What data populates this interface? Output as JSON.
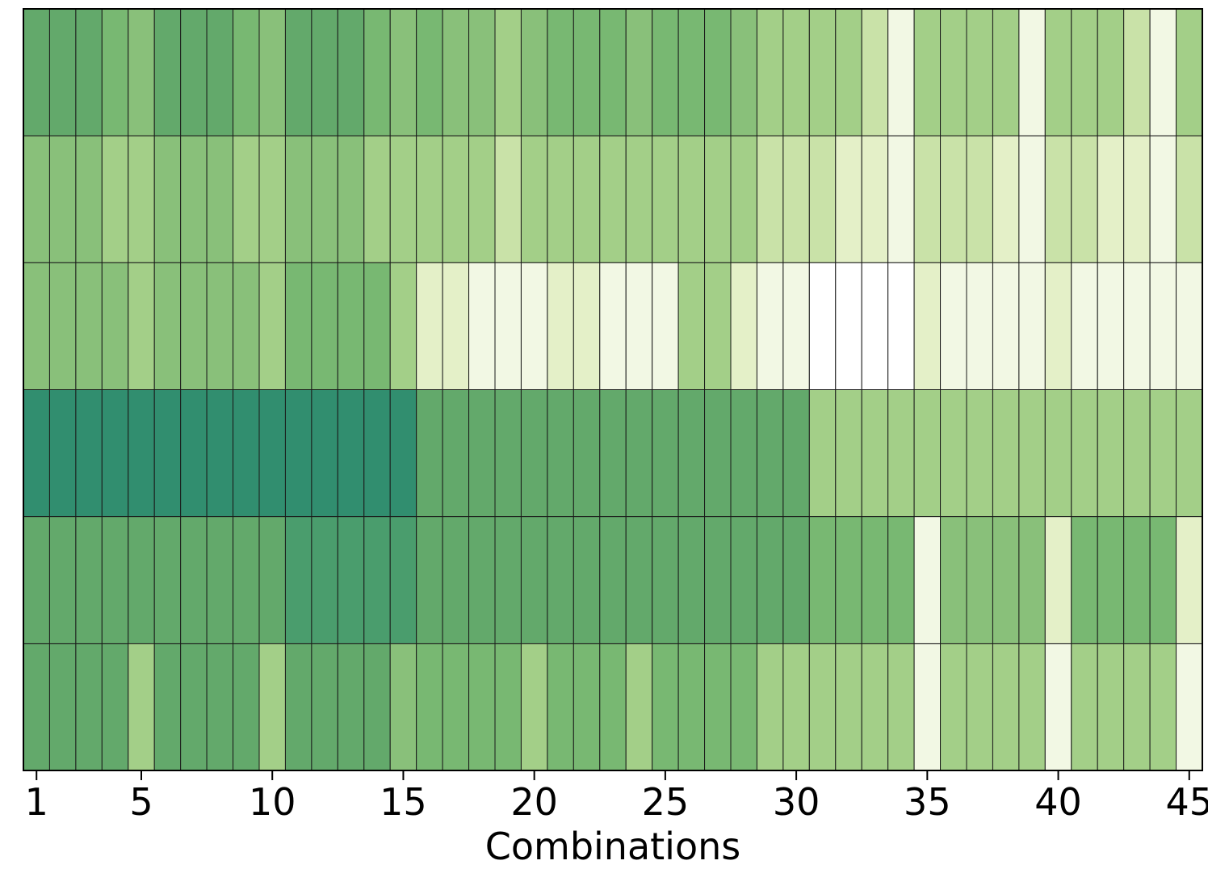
{
  "chart_data": {
    "type": "heatmap",
    "title": "",
    "xlabel": "Combinations",
    "ylabel": "",
    "x_tick_labels": [
      "1",
      "5",
      "10",
      "15",
      "20",
      "25",
      "30",
      "35",
      "40",
      "45"
    ],
    "x_ticks": [
      1,
      5,
      10,
      15,
      20,
      25,
      30,
      35,
      40,
      45
    ],
    "x_count": 45,
    "colormap": "YlGn",
    "grid": true,
    "legend": "none",
    "values": [
      [
        7,
        7,
        7,
        6,
        5,
        7,
        7,
        7,
        6,
        5,
        7,
        7,
        7,
        6,
        5,
        6,
        5,
        5,
        4,
        5,
        6,
        6,
        6,
        5,
        6,
        6,
        6,
        5,
        4,
        4,
        4,
        3,
        2,
        0,
        4,
        4,
        4,
        3,
        0,
        4,
        4,
        3,
        2,
        0,
        4
      ],
      [
        5,
        5,
        5,
        4,
        3,
        5,
        5,
        5,
        4,
        3,
        5,
        5,
        5,
        4,
        3,
        4,
        3,
        3,
        2,
        3,
        4,
        4,
        4,
        3,
        4,
        4,
        4,
        3,
        2,
        2,
        2,
        1,
        1,
        0,
        2,
        2,
        2,
        1,
        0,
        2,
        2,
        1,
        1,
        0,
        2
      ],
      [
        5,
        5,
        5,
        5,
        3,
        5,
        5,
        5,
        5,
        3,
        6,
        6,
        6,
        6,
        4,
        1,
        1,
        0,
        -1,
        -1,
        1,
        1,
        0,
        -1,
        -1,
        3,
        3,
        1,
        0,
        0,
        -3,
        -3,
        -3,
        -3,
        1,
        -1,
        -1,
        -1,
        -1,
        1,
        0,
        0,
        0,
        0,
        0
      ],
      [
        10,
        10,
        10,
        10,
        10,
        10,
        10,
        10,
        10,
        10,
        10,
        10,
        10,
        10,
        10,
        8,
        8,
        8,
        8,
        8,
        8,
        8,
        8,
        8,
        8,
        8,
        8,
        8,
        8,
        8,
        4,
        4,
        4,
        4,
        3,
        4,
        4,
        4,
        4,
        3,
        4,
        4,
        4,
        4,
        3
      ],
      [
        8,
        8,
        8,
        8,
        8,
        8,
        8,
        8,
        8,
        8,
        9,
        9,
        9,
        9,
        9,
        8,
        8,
        8,
        8,
        8,
        8,
        8,
        8,
        8,
        8,
        8,
        8,
        8,
        8,
        8,
        6,
        6,
        6,
        6,
        -1,
        5,
        5,
        5,
        5,
        1,
        6,
        6,
        6,
        6,
        1
      ],
      [
        8,
        8,
        8,
        8,
        4,
        8,
        8,
        8,
        8,
        4,
        8,
        8,
        8,
        8,
        5,
        6,
        6,
        6,
        6,
        4,
        6,
        6,
        6,
        4,
        6,
        6,
        6,
        6,
        4,
        3,
        3,
        3,
        3,
        3,
        0,
        3,
        3,
        3,
        3,
        0,
        3,
        3,
        3,
        3,
        0
      ]
    ],
    "palette": [
      "#ffffff",
      "#f7fcef",
      "#f2f8e4",
      "#e4f0c8",
      "#c9e2a8",
      "#a3cf88",
      "#89c07a",
      "#78b872",
      "#63a96b",
      "#4a9d6d",
      "#318e6f"
    ]
  }
}
